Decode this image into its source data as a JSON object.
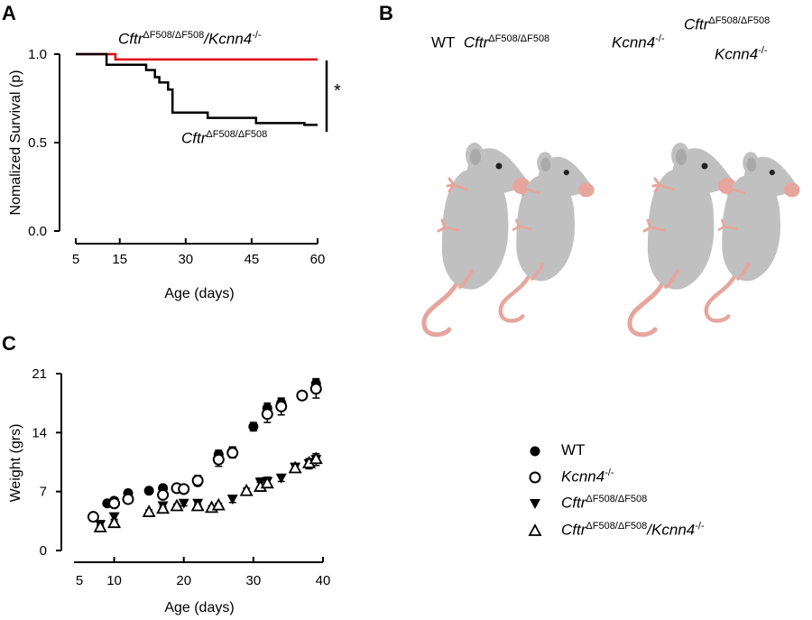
{
  "panels": {
    "a": "A",
    "b": "B",
    "c": "C"
  },
  "colors": {
    "cftr_kcnn4_line": "#e3000f",
    "cftr_line": "#000000",
    "mouse_body": "#c0c0c0",
    "mouse_skin": "#e6a59d"
  },
  "panel_a": {
    "curve_label_top": {
      "gene": "Cftr",
      "sup": "ΔF508/ΔF508",
      "rest": "/Kcnn4",
      "rest_sup": "-/-"
    },
    "curve_label_bottom": {
      "gene": "Cftr",
      "sup": "ΔF508/ΔF508"
    },
    "significance": "*"
  },
  "panel_b": {
    "wt": "WT",
    "cftr": {
      "gene": "Cftr",
      "sup": "ΔF508/ΔF508"
    },
    "kcnn4": {
      "gene": "Kcnn4",
      "sup": "-/-"
    },
    "double": {
      "gene": "Cftr",
      "sup": "ΔF508/ΔF508",
      "line2": "Kcnn4",
      "line2_sup": "-/-"
    }
  },
  "panel_c_legend": [
    {
      "symbol": "filled-circle",
      "label": "WT",
      "italic": false
    },
    {
      "symbol": "open-circle",
      "label": "Kcnn4",
      "sup": "-/-",
      "italic": true
    },
    {
      "symbol": "filled-triangle-down",
      "label": "Cftr",
      "sup": "ΔF508/ΔF508",
      "italic": true
    },
    {
      "symbol": "open-triangle-up",
      "label": "Cftr",
      "sup": "ΔF508/ΔF508",
      "rest": "/Kcnn4",
      "rest_sup": "-/-",
      "italic": true
    }
  ],
  "chart_data": [
    {
      "type": "line",
      "ylabel": "Nomalized Survival (p)",
      "xlabel": "Age (days)",
      "xticks": [
        5,
        15,
        30,
        45,
        60
      ],
      "yticks": [
        "0.0",
        "0.5",
        "1.0"
      ],
      "xlim": [
        5,
        60
      ],
      "ylim": [
        0,
        1
      ],
      "series": [
        {
          "name": "CftrΔF508/ΔF508/Kcnn4-/-",
          "color": "#e3000f",
          "steps": [
            [
              5,
              1.0
            ],
            [
              14,
              1.0
            ],
            [
              14,
              0.97
            ],
            [
              60,
              0.97
            ]
          ]
        },
        {
          "name": "CftrΔF508/ΔF508",
          "color": "#000000",
          "steps": [
            [
              5,
              1.0
            ],
            [
              12,
              1.0
            ],
            [
              12,
              0.94
            ],
            [
              21,
              0.94
            ],
            [
              21,
              0.91
            ],
            [
              23,
              0.91
            ],
            [
              23,
              0.87
            ],
            [
              24,
              0.87
            ],
            [
              24,
              0.84
            ],
            [
              26,
              0.84
            ],
            [
              26,
              0.8
            ],
            [
              27,
              0.8
            ],
            [
              27,
              0.67
            ],
            [
              35,
              0.67
            ],
            [
              35,
              0.64
            ],
            [
              46,
              0.64
            ],
            [
              46,
              0.61
            ],
            [
              57,
              0.61
            ],
            [
              57,
              0.6
            ],
            [
              60,
              0.6
            ]
          ]
        }
      ]
    },
    {
      "type": "scatter",
      "ylabel": "Weight (grs)",
      "xlabel": "Age (days)",
      "xticks": [
        5,
        10,
        20,
        30,
        40
      ],
      "yticks": [
        0,
        7,
        14,
        21
      ],
      "xlim": [
        5,
        40
      ],
      "ylim": [
        0,
        21
      ],
      "series": [
        {
          "name": "WT",
          "marker": "filled-circle",
          "points": [
            [
              7,
              4.0,
              0.2
            ],
            [
              9,
              5.6,
              0.3
            ],
            [
              10,
              5.9,
              0.3
            ],
            [
              12,
              6.8,
              0.3
            ],
            [
              15,
              7.1,
              0.3
            ],
            [
              17,
              7.4,
              0.3
            ],
            [
              20,
              7.2,
              0.3
            ],
            [
              22,
              8.1,
              0.4
            ],
            [
              25,
              11.4,
              0.5
            ],
            [
              27,
              11.8,
              0.5
            ],
            [
              30,
              14.7,
              0.5
            ],
            [
              32,
              16.9,
              0.6
            ],
            [
              34,
              17.5,
              0.5
            ],
            [
              37,
              18.4,
              0.4
            ],
            [
              39,
              19.8,
              0.6
            ]
          ]
        },
        {
          "name": "Kcnn4-/-",
          "marker": "open-circle",
          "points": [
            [
              7,
              4.0,
              0.2
            ],
            [
              10,
              5.6,
              0.3
            ],
            [
              12,
              6.1,
              0.3
            ],
            [
              17,
              6.6,
              0.3
            ],
            [
              19,
              7.4,
              0.3
            ],
            [
              20,
              7.3,
              0.3
            ],
            [
              22,
              8.3,
              0.6
            ],
            [
              25,
              10.8,
              0.8
            ],
            [
              27,
              11.6,
              0.6
            ],
            [
              32,
              16.2,
              1.0
            ],
            [
              34,
              17.1,
              1.0
            ],
            [
              37,
              18.4,
              0.4
            ],
            [
              39,
              19.2,
              1.1
            ]
          ]
        },
        {
          "name": "CftrΔF508/ΔF508",
          "marker": "filled-triangle-down",
          "points": [
            [
              8,
              3.1,
              0.2
            ],
            [
              10,
              4.0,
              0.3
            ],
            [
              17,
              5.3,
              0.3
            ],
            [
              20,
              5.6,
              0.3
            ],
            [
              22,
              5.6,
              0.3
            ],
            [
              27,
              6.1,
              0.4
            ],
            [
              31,
              8.1,
              0.5
            ],
            [
              32,
              8.2,
              0.5
            ],
            [
              34,
              8.6,
              0.4
            ],
            [
              36,
              9.9,
              0.4
            ],
            [
              38,
              10.3,
              0.6
            ],
            [
              39,
              10.8,
              0.7
            ]
          ]
        },
        {
          "name": "CftrΔF508/ΔF508/Kcnn4-/-",
          "marker": "open-triangle-up",
          "points": [
            [
              8,
              2.8,
              0.2
            ],
            [
              10,
              3.3,
              0.2
            ],
            [
              15,
              4.6,
              0.2
            ],
            [
              17,
              5.0,
              0.2
            ],
            [
              19,
              5.3,
              0.2
            ],
            [
              22,
              5.3,
              0.2
            ],
            [
              24,
              5.1,
              0.2
            ],
            [
              25,
              5.4,
              0.2
            ],
            [
              29,
              7.1,
              0.3
            ],
            [
              31,
              7.6,
              0.5
            ],
            [
              32,
              8.0,
              0.4
            ],
            [
              36,
              9.8,
              0.3
            ],
            [
              38,
              10.4,
              0.4
            ],
            [
              39,
              10.9,
              0.4
            ]
          ]
        }
      ]
    }
  ]
}
